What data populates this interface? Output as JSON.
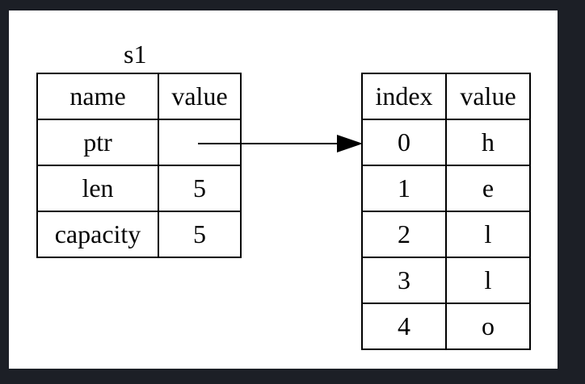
{
  "stack": {
    "label": "s1",
    "headers": [
      "name",
      "value"
    ],
    "rows": [
      {
        "name": "ptr",
        "value": ""
      },
      {
        "name": "len",
        "value": "5"
      },
      {
        "name": "capacity",
        "value": "5"
      }
    ]
  },
  "heap": {
    "headers": [
      "index",
      "value"
    ],
    "rows": [
      {
        "index": "0",
        "value": "h"
      },
      {
        "index": "1",
        "value": "e"
      },
      {
        "index": "2",
        "value": "l"
      },
      {
        "index": "3",
        "value": "l"
      },
      {
        "index": "4",
        "value": "o"
      }
    ]
  },
  "colors": {
    "background": "#1c1f26",
    "canvas": "#ffffff",
    "ink": "#000000"
  }
}
